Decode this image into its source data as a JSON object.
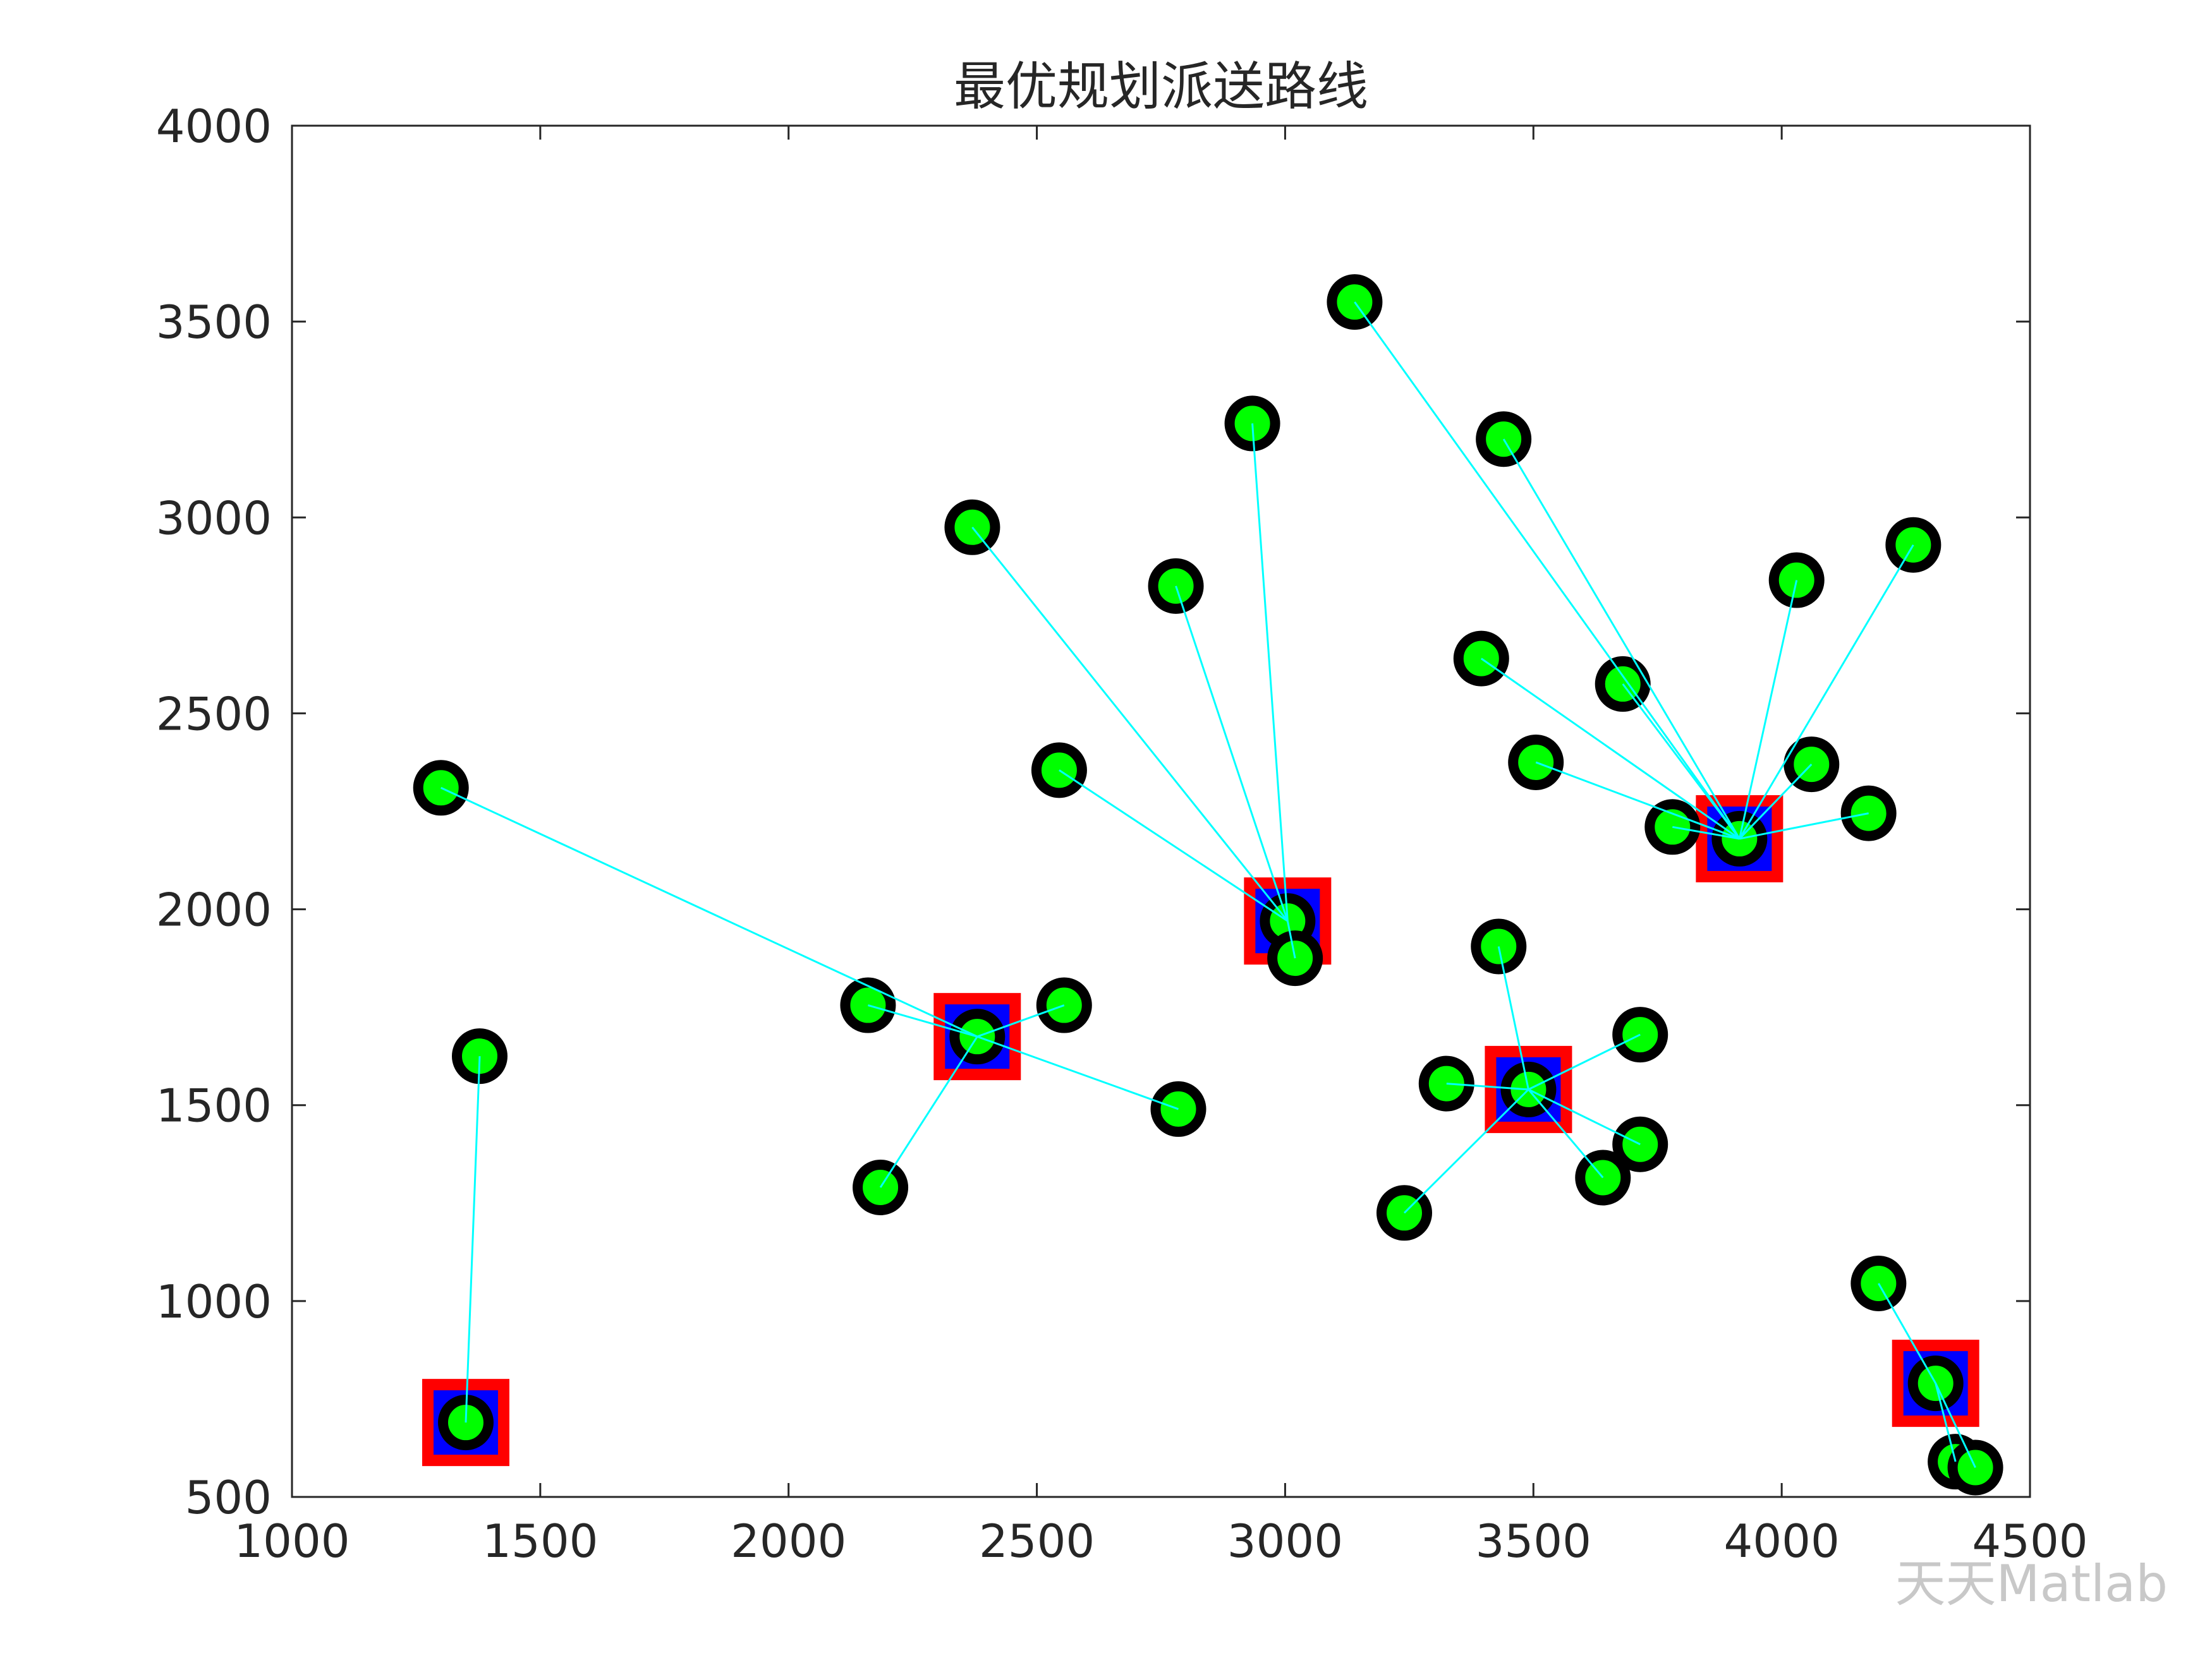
{
  "chart_data": {
    "type": "scatter",
    "title": "最优规划派送路线",
    "xlim": [
      1000,
      4500
    ],
    "xticks": [
      1000,
      1500,
      2000,
      2500,
      3000,
      3500,
      4000,
      4500
    ],
    "ylim": [
      500,
      4000
    ],
    "yticks": [
      500,
      1000,
      1500,
      2000,
      2500,
      3000,
      3500,
      4000
    ],
    "depot_color": "#0000ff",
    "depot_edge_color": "#ff0000",
    "customer_color": "#00ff00",
    "customer_edge_color": "#000000",
    "line_color": "#00ffff",
    "routes": [
      {
        "depot_x": 1350,
        "depot_y": 690,
        "x": [
          1378
        ],
        "y": [
          1625
        ]
      },
      {
        "depot_x": 2380,
        "depot_y": 1675,
        "x": [
          1300,
          2160,
          2555,
          2785,
          2185
        ],
        "y": [
          2310,
          1755,
          1755,
          1490,
          1290
        ]
      },
      {
        "depot_x": 3005,
        "depot_y": 1970,
        "x": [
          2370,
          2780,
          2934,
          2545,
          3020
        ],
        "y": [
          2975,
          2825,
          3240,
          2355,
          1875
        ]
      },
      {
        "depot_x": 3915,
        "depot_y": 2180,
        "x": [
          3140,
          3440,
          3395,
          3680,
          3505,
          3780,
          4030,
          4265,
          4060,
          4175
        ],
        "y": [
          3550,
          3200,
          2640,
          2575,
          2375,
          2210,
          2840,
          2930,
          2370,
          2245
        ]
      },
      {
        "depot_x": 3490,
        "depot_y": 1540,
        "x": [
          3430,
          3715,
          3325,
          3715,
          3640,
          3240
        ],
        "y": [
          1905,
          1680,
          1555,
          1400,
          1315,
          1225
        ]
      },
      {
        "depot_x": 4310,
        "depot_y": 790,
        "x": [
          4195,
          4350,
          4390
        ],
        "y": [
          1045,
          590,
          575
        ]
      }
    ]
  },
  "watermark": "天天Matlab"
}
